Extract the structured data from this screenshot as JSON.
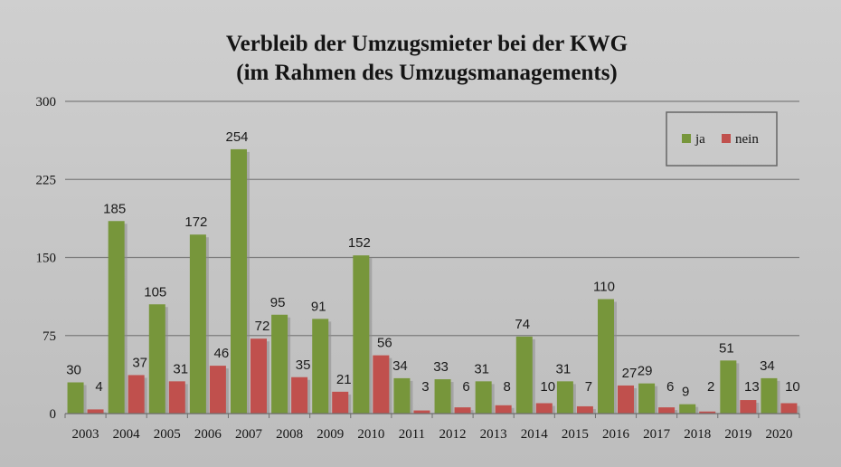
{
  "chart_data": {
    "type": "bar",
    "title": "Verbleib der Umzugsmieter bei der KWG",
    "subtitle": "(im Rahmen des Umzugsmanagements)",
    "categories": [
      "2003",
      "2004",
      "2005",
      "2006",
      "2007",
      "2008",
      "2009",
      "2010",
      "2011",
      "2012",
      "2013",
      "2014",
      "2015",
      "2016",
      "2017",
      "2018",
      "2019",
      "2020"
    ],
    "series": [
      {
        "name": "ja",
        "color": "#77963b",
        "values": [
          30,
          185,
          105,
          172,
          254,
          95,
          91,
          152,
          34,
          33,
          31,
          74,
          31,
          110,
          29,
          9,
          51,
          34
        ]
      },
      {
        "name": "nein",
        "color": "#c0504d",
        "values": [
          4,
          37,
          31,
          46,
          72,
          35,
          21,
          56,
          3,
          6,
          8,
          10,
          7,
          27,
          6,
          2,
          13,
          10
        ]
      }
    ],
    "ylim": [
      0,
      300
    ],
    "yticks": [
      "0",
      "75",
      "150",
      "225",
      "300"
    ],
    "grid": true,
    "legend": "top-right"
  }
}
